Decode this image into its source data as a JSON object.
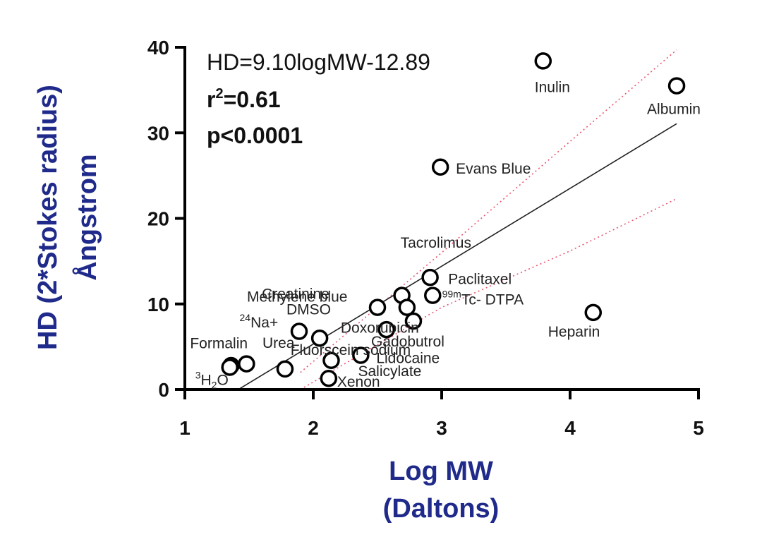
{
  "chart_data": {
    "type": "scatter",
    "xlabel_line1": "Log MW",
    "xlabel_line2": "(Daltons)",
    "ylabel_line1": "HD (2*Stokes radius)",
    "ylabel_line2": "Ångstrom",
    "xlim": [
      1,
      5
    ],
    "ylim": [
      0,
      40
    ],
    "xticks": [
      "1",
      "2",
      "3",
      "4",
      "5"
    ],
    "yticks": [
      "0",
      "10",
      "20",
      "30",
      "40"
    ],
    "grid": false,
    "annotations": {
      "equation": "HD=9.10logMW-12.89",
      "r2_prefix": "r",
      "r2_sup": "2",
      "r2_suffix": "=0.61",
      "p_value": "p<0.0001"
    },
    "points": [
      {
        "label": "Inulin",
        "x": 3.79,
        "y": 38.4
      },
      {
        "label": "Albumin",
        "x": 4.83,
        "y": 35.5
      },
      {
        "label": "Evans Blue",
        "x": 2.99,
        "y": 26.0
      },
      {
        "label": "Tacrolimus",
        "x": 2.91,
        "y": 13.1
      },
      {
        "label": "Paclitaxel",
        "x": 2.93,
        "y": 11.0
      },
      {
        "label": "99mTc- DTPA",
        "x": 2.69,
        "y": 11.0
      },
      {
        "label": "Doxorubicin",
        "x": 2.73,
        "y": 9.6
      },
      {
        "label": "Methylene blue",
        "x": 2.5,
        "y": 9.6
      },
      {
        "label": "Gadobutrol",
        "x": 2.78,
        "y": 8.0
      },
      {
        "label": "Fluorscein sodium",
        "x": 2.57,
        "y": 7.0
      },
      {
        "label": "Heparin",
        "x": 4.18,
        "y": 9.0
      },
      {
        "label": "Creatinine",
        "x": 2.05,
        "y": 6.0
      },
      {
        "label": "DMSO",
        "x": 1.89,
        "y": 6.8
      },
      {
        "label": "24Na+",
        "x": 1.36,
        "y": 2.8
      },
      {
        "label": "Formalin",
        "x": 1.48,
        "y": 3.0
      },
      {
        "label": "Urea",
        "x": 1.78,
        "y": 2.4
      },
      {
        "label": "3H2O",
        "x": 1.35,
        "y": 2.6
      },
      {
        "label": "Lidocaine",
        "x": 2.37,
        "y": 4.0
      },
      {
        "label": "Salicylate",
        "x": 2.14,
        "y": 3.4
      },
      {
        "label": "Xenon",
        "x": 2.12,
        "y": 1.3
      }
    ],
    "regression": {
      "slope": 9.1,
      "intercept": -12.89,
      "x_from": 1.42,
      "x_to": 4.83
    },
    "confidence_band": {
      "upper": [
        [
          1.9,
          2.0
        ],
        [
          3.0,
          16.0
        ],
        [
          4.0,
          29.0
        ],
        [
          4.83,
          39.7
        ]
      ],
      "lower": [
        [
          1.9,
          0.0
        ],
        [
          3.0,
          9.6
        ],
        [
          4.0,
          16.2
        ],
        [
          4.83,
          22.3
        ]
      ]
    },
    "colors": {
      "axis_title": "#1f2a8a",
      "axes": "#000000",
      "regression_line": "#222222",
      "confidence_band": "#e8556e",
      "marker_stroke": "#000000",
      "marker_fill": "#ffffff"
    }
  }
}
